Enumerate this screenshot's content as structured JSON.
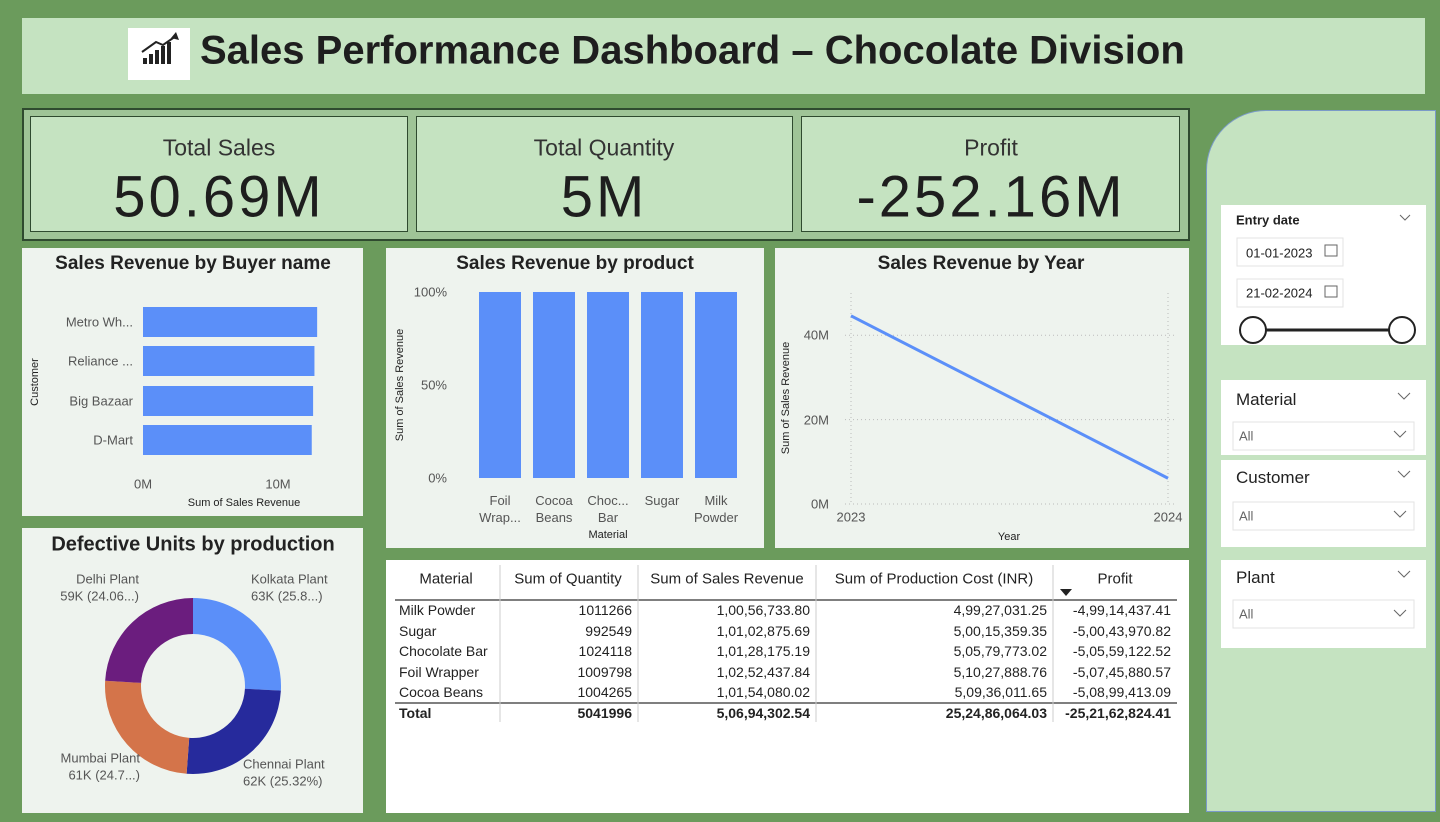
{
  "header": {
    "title": "Sales Performance Dashboard – Chocolate Division"
  },
  "kpis": [
    {
      "label": "Total Sales",
      "value": "50.69M"
    },
    {
      "label": "Total Quantity",
      "value": "5M"
    },
    {
      "label": "Profit",
      "value": "-252.16M"
    }
  ],
  "chart_data": [
    {
      "type": "bar",
      "orientation": "horizontal",
      "title": "Sales Revenue by Buyer name",
      "categories": [
        "Metro Wh...",
        "Reliance ...",
        "Big Bazaar",
        "D-Mart"
      ],
      "values": [
        12900000,
        12700000,
        12600000,
        12500000
      ],
      "color": "#5b8ff9",
      "xlim": [
        0,
        13000000
      ],
      "xticks": [
        {
          "value": 0,
          "label": "0M"
        },
        {
          "value": 10000000,
          "label": "10M"
        }
      ],
      "x_label": "Sum of Sales Revenue",
      "y_label": "Customer"
    },
    {
      "type": "bar",
      "orientation": "vertical",
      "title": "Sales Revenue by product",
      "categories": [
        "Foil Wrap...",
        "Cocoa Beans",
        "Choc... Bar",
        "Sugar",
        "Milk Powder"
      ],
      "values": [
        100,
        100,
        100,
        100,
        100
      ],
      "color": "#5b8ff9",
      "ylim": [
        0,
        100
      ],
      "yticks": [
        {
          "value": 0,
          "label": "0%"
        },
        {
          "value": 50,
          "label": "50%"
        },
        {
          "value": 100,
          "label": "100%"
        }
      ],
      "x_label": "Material",
      "y_label": "Sum of Sales Revenue"
    },
    {
      "type": "line",
      "title": "Sales Revenue by Year",
      "x": [
        2023,
        2024
      ],
      "values": [
        44600000,
        6100000
      ],
      "color": "#5b8ff9",
      "xlim": [
        2023,
        2024
      ],
      "xticks": [
        2023,
        2024
      ],
      "ylim": [
        0,
        50000000
      ],
      "yticks": [
        {
          "value": 0,
          "label": "0M"
        },
        {
          "value": 20000000,
          "label": "20M"
        },
        {
          "value": 40000000,
          "label": "40M"
        }
      ],
      "grid": true,
      "x_label": "Year",
      "y_label": "Sum of Sales Revenue"
    },
    {
      "type": "pie",
      "donut": true,
      "title": "Defective Units by production",
      "categories": [
        "Kolkata Plant",
        "Chennai Plant",
        "Mumbai Plant",
        "Delhi Plant"
      ],
      "values": [
        63273,
        62000,
        60678,
        58915
      ],
      "value_labels": [
        "63K (25.8...)",
        "62K (25.32%)",
        "61K (24.7...)",
        "59K (24.06...)"
      ],
      "colors": [
        "#5b8ff9",
        "#262a9c",
        "#d4744a",
        "#6b1d7e"
      ]
    }
  ],
  "table": {
    "columns": [
      "Material",
      "Sum of Quantity",
      "Sum of Sales Revenue",
      "Sum of Production Cost (INR)",
      "Profit"
    ],
    "rows": [
      [
        "Milk Powder",
        "1011266",
        "1,00,56,733.80",
        "4,99,27,031.25",
        "-4,99,14,437.41"
      ],
      [
        "Sugar",
        "992549",
        "1,01,02,875.69",
        "5,00,15,359.35",
        "-5,00,43,970.82"
      ],
      [
        "Chocolate Bar",
        "1024118",
        "1,01,28,175.19",
        "5,05,79,773.02",
        "-5,05,59,122.52"
      ],
      [
        "Foil Wrapper",
        "1009798",
        "1,02,52,437.84",
        "5,10,27,888.76",
        "-5,07,45,880.57"
      ],
      [
        "Cocoa Beans",
        "1004265",
        "1,01,54,080.02",
        "5,09,36,011.65",
        "-5,08,99,413.09"
      ]
    ],
    "total": [
      "Total",
      "5041996",
      "5,06,94,302.54",
      "25,24,86,064.03",
      "-25,21,62,824.41"
    ]
  },
  "slicers": [
    {
      "title": "Entry date",
      "from": "01-01-2023",
      "to": "21-02-2024"
    },
    {
      "title": "Material",
      "value": "All"
    },
    {
      "title": "Customer",
      "value": "All"
    },
    {
      "title": "Plant",
      "value": "All"
    }
  ]
}
